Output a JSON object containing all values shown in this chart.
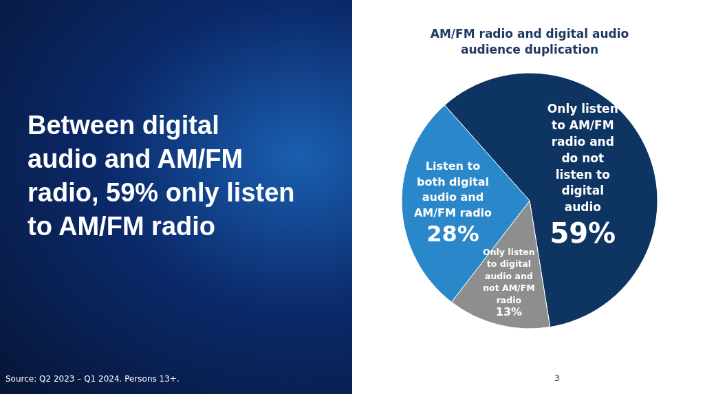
{
  "chart_data": {
    "type": "pie",
    "title": "AM/FM radio and digital audio audience duplication",
    "categories": [
      "Only listen to AM/FM radio and do not listen to digital audio",
      "Only listen to digital audio and not AM/FM radio",
      "Listen to both digital audio and AM/FM radio"
    ],
    "values": [
      59,
      13,
      28
    ],
    "value_labels": [
      "59%",
      "13%",
      "28%"
    ],
    "colors": [
      "#0e3461",
      "#8e8e8e",
      "#2a87c9"
    ],
    "annotations": [
      "Between digital audio and AM/FM radio, 59% only listen to AM/FM radio",
      "Source: Q2 2023 – Q1 2024. Persons 13+.",
      "3"
    ]
  }
}
